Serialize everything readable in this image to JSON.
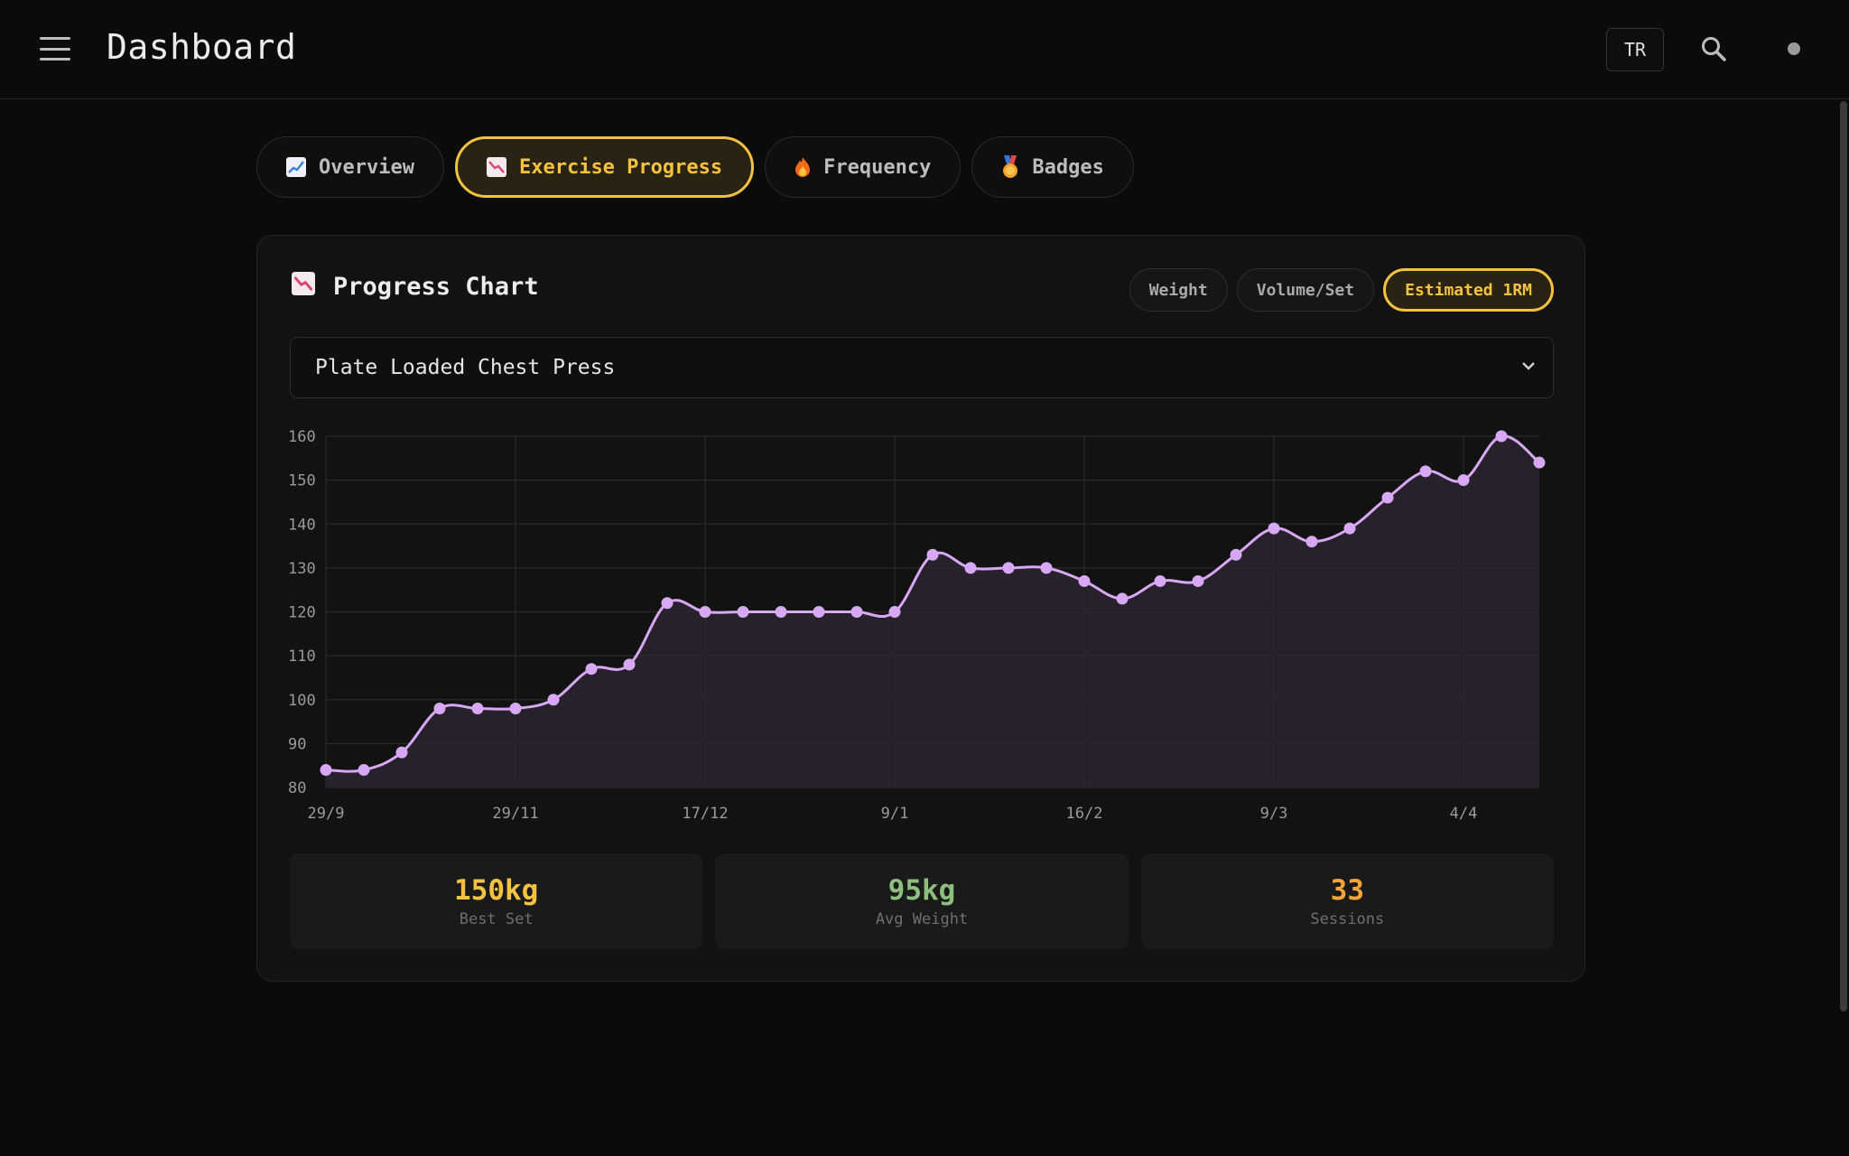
{
  "header": {
    "title": "Dashboard",
    "lang_label": "TR"
  },
  "tabs": [
    {
      "label": "Overview",
      "icon": "chart-increasing-icon",
      "active": false
    },
    {
      "label": "Exercise Progress",
      "icon": "chart-decreasing-icon",
      "active": true
    },
    {
      "label": "Frequency",
      "icon": "fire-icon",
      "active": false
    },
    {
      "label": "Badges",
      "icon": "medal-icon",
      "active": false
    }
  ],
  "card": {
    "title": "Progress Chart",
    "metrics": [
      {
        "label": "Weight",
        "active": false
      },
      {
        "label": "Volume/Set",
        "active": false
      },
      {
        "label": "Estimated 1RM",
        "active": true
      }
    ],
    "selected_exercise": "Plate Loaded Chest Press"
  },
  "stats": [
    {
      "value": "150kg",
      "label": "Best Set",
      "color": "#f3c240"
    },
    {
      "value": "95kg",
      "label": "Avg Weight",
      "color": "#8fbf7f"
    },
    {
      "value": "33",
      "label": "Sessions",
      "color": "#f3a43a"
    }
  ],
  "colors": {
    "accent": "#f3c240",
    "line": "#d9a8f5",
    "area": "#2a2530",
    "grid": "#2a2a2a"
  },
  "chart_data": {
    "type": "area",
    "x_tick_labels": [
      "29/9",
      "29/11",
      "17/12",
      "9/1",
      "16/2",
      "9/3",
      "4/4"
    ],
    "y_ticks": [
      80,
      90,
      100,
      110,
      120,
      130,
      140,
      150,
      160
    ],
    "ylim": [
      80,
      160
    ],
    "series": [
      {
        "values": [
          84,
          84,
          88,
          98,
          98,
          98,
          100,
          107,
          108,
          122,
          120,
          120,
          120,
          120,
          120,
          120,
          133,
          130,
          130,
          130,
          127,
          123,
          127,
          127,
          133,
          139,
          136,
          139,
          146,
          152,
          150,
          160,
          154
        ]
      }
    ],
    "grid": true
  }
}
